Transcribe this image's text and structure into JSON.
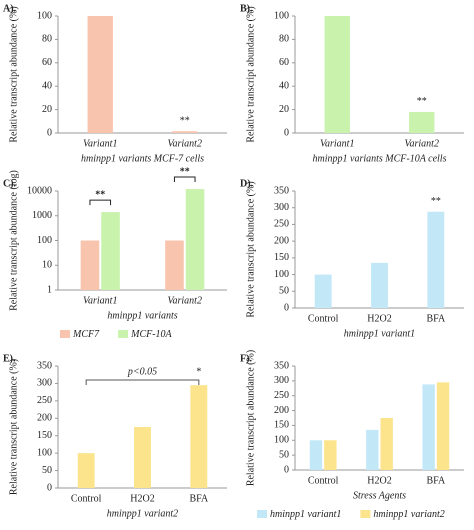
{
  "chart_data": [
    {
      "type": "bar",
      "panel_label": "A).",
      "y_label": "Relative transcript abundance (%)",
      "x_label": "hminpp1 variants MCF-7 cells",
      "categories": [
        "Variant1",
        "Variant2"
      ],
      "values": [
        100,
        1.5
      ],
      "color": "#f9c4ae",
      "ylim": [
        0,
        100
      ],
      "yticks": [
        0,
        20,
        40,
        60,
        80,
        100
      ],
      "annotations": [
        "**"
      ]
    },
    {
      "type": "bar",
      "panel_label": "B).",
      "y_label": "Relative transcript abundance (%)",
      "x_label": "hminpp1 variants MCF-10A cells",
      "categories": [
        "Variant1",
        "Variant2"
      ],
      "values": [
        100,
        18
      ],
      "color": "#c9f2ad",
      "ylim": [
        0,
        100
      ],
      "yticks": [
        0,
        20,
        40,
        60,
        80,
        100
      ],
      "annotations": [
        "**"
      ]
    },
    {
      "type": "bar",
      "panel_label": "C).",
      "y_label": "Relative transcript abundance (log)",
      "x_label": "hminpp1 variants",
      "categories": [
        "Variant1",
        "Variant2"
      ],
      "yscale": "log",
      "series": [
        {
          "name": "MCF7",
          "color": "#f9c4ae",
          "values": [
            100,
            100
          ]
        },
        {
          "name": "MCF-10A",
          "color": "#c9f2ad",
          "values": [
            1400,
            12000
          ]
        }
      ],
      "ylim": [
        1,
        10000
      ],
      "yticks": [
        1,
        10,
        100,
        1000,
        10000
      ],
      "annotations": [
        "**",
        "**"
      ]
    },
    {
      "type": "bar",
      "panel_label": "D).",
      "y_label": "Relative transcript abundance (%)",
      "x_label": "hminpp1 variant1",
      "categories": [
        "Control",
        "H2O2",
        "BFA"
      ],
      "values": [
        100,
        135,
        288
      ],
      "color": "#c2e8f8",
      "ylim": [
        0,
        350
      ],
      "yticks": [
        0,
        50,
        100,
        150,
        200,
        250,
        300,
        350
      ],
      "annotations": [
        "**"
      ]
    },
    {
      "type": "bar",
      "panel_label": "E).",
      "y_label": "Relative transcript abundance (%)",
      "x_label": "hminpp1 variant2",
      "categories": [
        "Control",
        "H2O2",
        "BFA"
      ],
      "values": [
        100,
        175,
        295
      ],
      "color": "#fbe48c",
      "ylim": [
        0,
        350
      ],
      "yticks": [
        0,
        50,
        100,
        150,
        200,
        250,
        300,
        350
      ],
      "annotations": [
        "p<0.05",
        "*"
      ]
    },
    {
      "type": "bar",
      "panel_label": "F).",
      "y_label": "Relative transcript abundance (%)",
      "x_label": "Stress Agents",
      "categories": [
        "Control",
        "H2O2",
        "BFA"
      ],
      "series": [
        {
          "name": "hminpp1 variant1",
          "color": "#c2e8f8",
          "values": [
            100,
            135,
            288
          ]
        },
        {
          "name": "hminpp1 variant2",
          "color": "#fbe48c",
          "values": [
            100,
            175,
            295
          ]
        }
      ],
      "ylim": [
        0,
        350
      ],
      "yticks": [
        0,
        50,
        100,
        150,
        200,
        250,
        300,
        350
      ]
    }
  ]
}
